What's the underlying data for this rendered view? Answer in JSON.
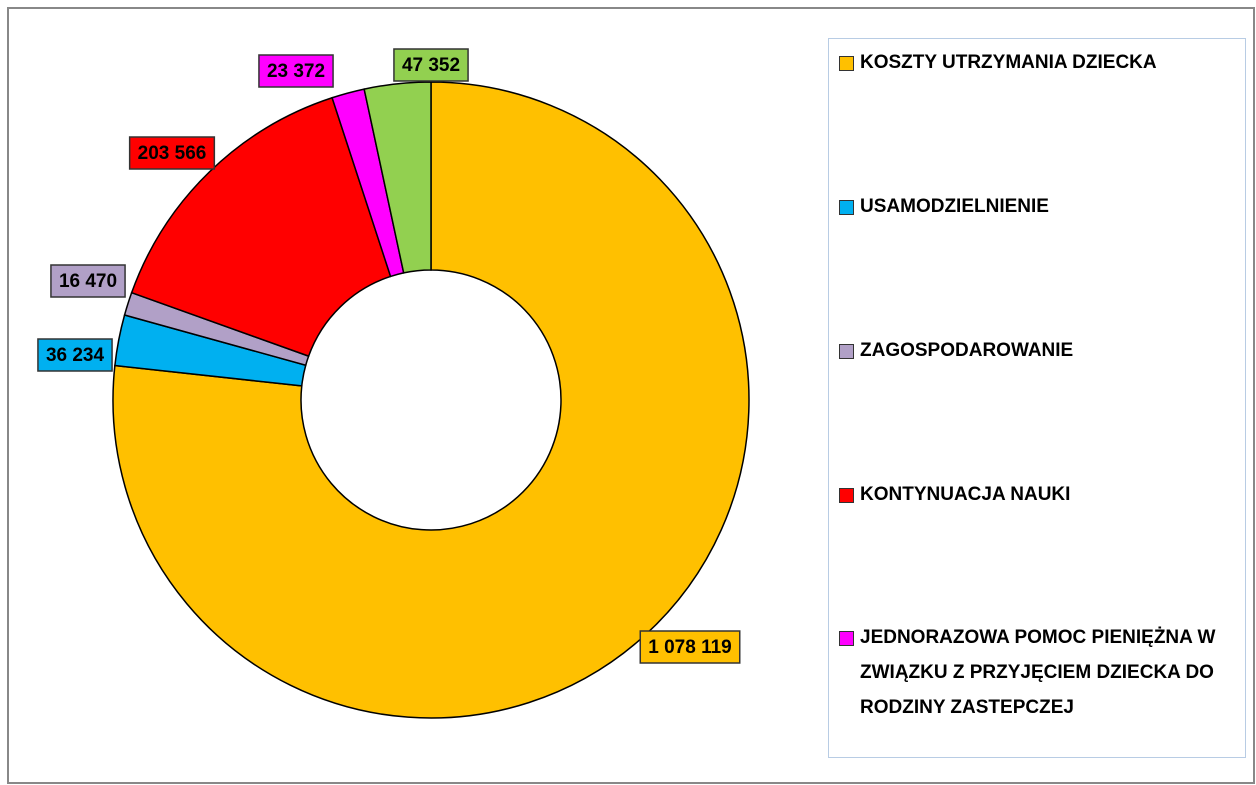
{
  "chart_data": {
    "type": "donut",
    "categories": [
      "KOSZTY UTRZYMANIA DZIECKA",
      "USAMODZIELNIENIE",
      "ZAGOSPODAROWANIE",
      "KONTYNUACJA NAUKI",
      "JEDNORAZOWA POMOC PIENIĘŻNA W ZWIĄZKU Z PRZYJĘCIEM DZIECKA DO RODZINY ZASTEPCZEJ",
      null
    ],
    "values": [
      1078119,
      36234,
      16470,
      203566,
      23372,
      47352
    ],
    "value_labels": [
      "1 078 119",
      "36 234",
      "16 470",
      "203 566",
      "23 372",
      "47 352"
    ],
    "colors": [
      "#ffc000",
      "#00b0f0",
      "#b1a0c7",
      "#ff0000",
      "#ff00ff",
      "#92d050"
    ],
    "legend": "right"
  }
}
